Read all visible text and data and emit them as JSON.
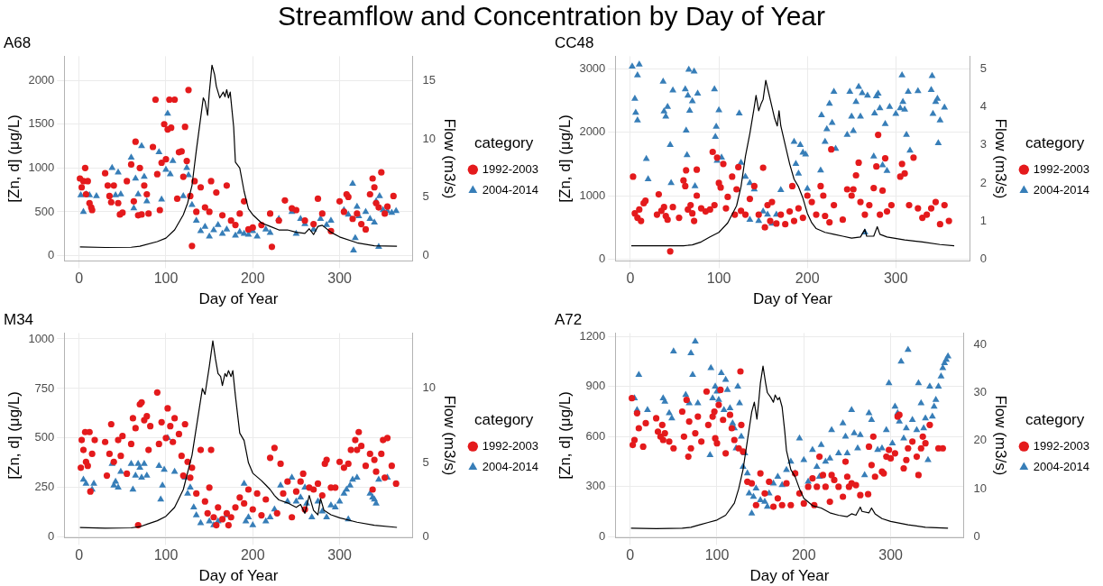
{
  "chart_data": [
    {
      "type": "scatter",
      "title": "Streamflow and Concentration by Day of Year",
      "subtitle": "A68",
      "xlabel": "Day of Year",
      "ylabel": "[Zn, d] (μg/L)",
      "y2label": "Flow (m3/s)",
      "legend_title": "category",
      "legend": "right",
      "grid": true,
      "xlim": [
        -17,
        384
      ],
      "xticks": [
        0,
        100,
        200,
        300
      ],
      "ylim": [
        -60,
        2275
      ],
      "yticks": [
        0,
        500,
        1000,
        1500,
        2000
      ],
      "y2lim": [
        -0.45,
        17.06
      ],
      "y2ticks": [
        0,
        5,
        10,
        15
      ],
      "series": [
        {
          "name": "1992-2003",
          "type": "scatter",
          "marker": "circle",
          "color": "#e41a1c",
          "x": [
            1,
            3,
            5,
            7,
            8,
            10,
            12,
            14,
            15,
            30,
            33,
            35,
            37,
            40,
            45,
            47,
            50,
            55,
            60,
            63,
            65,
            68,
            70,
            72,
            75,
            78,
            80,
            85,
            88,
            90,
            93,
            95,
            98,
            100,
            102,
            104,
            106,
            110,
            113,
            115,
            118,
            120,
            122,
            124,
            126,
            128,
            130,
            133,
            135,
            140,
            145,
            150,
            152,
            158,
            165,
            170,
            175,
            180,
            185,
            190,
            195,
            200,
            210,
            220,
            222,
            230,
            237,
            245,
            250,
            260,
            270,
            275,
            280,
            290,
            300,
            305,
            308,
            310,
            315,
            320,
            325,
            330,
            335,
            338,
            340,
            342,
            345,
            348,
            352,
            355,
            362
          ],
          "values": [
            880,
            780,
            850,
            1000,
            700,
            850,
            600,
            550,
            520,
            940,
            800,
            680,
            610,
            800,
            600,
            470,
            490,
            850,
            1040,
            620,
            1300,
            460,
            1000,
            470,
            800,
            700,
            480,
            1240,
            1780,
            930,
            520,
            1060,
            1500,
            1100,
            1440,
            1780,
            1460,
            1780,
            650,
            1180,
            1190,
            900,
            1470,
            1080,
            1890,
            680,
            110,
            850,
            500,
            780,
            550,
            500,
            850,
            720,
            460,
            800,
            400,
            350,
            480,
            620,
            300,
            320,
            350,
            480,
            100,
            400,
            630,
            540,
            520,
            400,
            360,
            650,
            480,
            280,
            620,
            500,
            700,
            670,
            420,
            480,
            360,
            300,
            700,
            880,
            780,
            600,
            550,
            950,
            480,
            560,
            680
          ]
        },
        {
          "name": "2004-2014",
          "type": "scatter",
          "marker": "triangle",
          "color": "#377eb8",
          "x": [
            2,
            5,
            8,
            12,
            20,
            38,
            42,
            45,
            48,
            60,
            63,
            65,
            68,
            72,
            75,
            78,
            92,
            95,
            100,
            102,
            105,
            108,
            120,
            124,
            126,
            130,
            135,
            140,
            145,
            150,
            155,
            160,
            165,
            170,
            180,
            185,
            190,
            195,
            200,
            205,
            215,
            220,
            230,
            245,
            250,
            255,
            260,
            270,
            278,
            285,
            290,
            305,
            310,
            315,
            316,
            318,
            320,
            322,
            330,
            335,
            340,
            342,
            345,
            346,
            350,
            355,
            360,
            365
          ],
          "values": [
            690,
            500,
            700,
            690,
            680,
            1000,
            690,
            950,
            700,
            1120,
            540,
            880,
            700,
            1250,
            900,
            620,
            1180,
            640,
            980,
            1620,
            930,
            1080,
            680,
            1000,
            920,
            580,
            400,
            280,
            330,
            220,
            290,
            350,
            250,
            300,
            230,
            270,
            250,
            240,
            280,
            220,
            300,
            260,
            420,
            500,
            250,
            420,
            360,
            300,
            420,
            350,
            400,
            520,
            470,
            820,
            60,
            200,
            560,
            450,
            500,
            420,
            380,
            620,
            100,
            680,
            520,
            510,
            490,
            510
          ]
        },
        {
          "type": "line",
          "axis": "y2",
          "marker": "none",
          "line_style": "solid",
          "color": "#000000",
          "x": [
            1,
            30,
            60,
            70,
            90,
            100,
            110,
            120,
            125,
            130,
            135,
            140,
            143,
            145,
            148,
            150,
            153,
            156,
            158,
            162,
            166,
            168,
            170,
            172,
            174,
            178,
            180,
            185,
            190,
            195,
            200,
            210,
            220,
            230,
            240,
            250,
            260,
            265,
            270,
            275,
            280,
            290,
            300,
            320,
            340,
            366
          ],
          "values": [
            0.75,
            0.7,
            0.72,
            0.8,
            1.2,
            1.5,
            2.2,
            3.5,
            4.5,
            6,
            9,
            11.8,
            13.5,
            13.2,
            12,
            14,
            16.3,
            15.5,
            14.5,
            13.5,
            14,
            13.6,
            14.2,
            13.5,
            14,
            11,
            8,
            7.5,
            5.5,
            4,
            3.5,
            2.8,
            2.5,
            2.2,
            2.2,
            2,
            1.9,
            2.3,
            1.8,
            2.5,
            2.6,
            2,
            1.6,
            1.1,
            0.85,
            0.8
          ]
        }
      ]
    },
    {
      "type": "scatter",
      "subtitle": "CC48",
      "xlabel": "Day of Year",
      "ylabel": "[Zn, d] (μg/L)",
      "y2label": "Flow (m3/s)",
      "legend_title": "category",
      "legend": "right",
      "grid": true,
      "xlim": [
        -17,
        384
      ],
      "xticks": [
        0,
        100,
        200,
        300
      ],
      "ylim": [
        -30,
        3200
      ],
      "yticks": [
        0,
        1000,
        2000,
        3000
      ],
      "y2lim": [
        -0.05,
        5.333
      ],
      "y2ticks": [
        0,
        1,
        2,
        3,
        4,
        5
      ],
      "series": [
        {
          "name": "1992-2003",
          "type": "scatter",
          "marker": "circle",
          "color": "#e41a1c",
          "x": [
            3,
            5,
            8,
            10,
            12,
            15,
            17,
            30,
            32,
            35,
            38,
            40,
            42,
            45,
            48,
            55,
            60,
            62,
            63,
            65,
            68,
            70,
            72,
            75,
            75,
            80,
            85,
            90,
            93,
            95,
            98,
            100,
            102,
            105,
            108,
            110,
            115,
            118,
            120,
            122,
            125,
            130,
            135,
            140,
            145,
            150,
            152,
            155,
            158,
            160,
            165,
            170,
            175,
            180,
            183,
            185,
            190,
            195,
            200,
            205,
            210,
            215,
            218,
            220,
            225,
            227,
            230,
            240,
            245,
            250,
            252,
            255,
            258,
            260,
            265,
            270,
            275,
            278,
            280,
            282,
            285,
            288,
            290,
            295,
            305,
            307,
            310,
            315,
            320,
            325,
            330,
            335,
            340,
            345,
            350,
            355,
            360
          ],
          "values": [
            1300,
            720,
            650,
            780,
            600,
            880,
            920,
            700,
            1020,
            760,
            820,
            680,
            620,
            120,
            820,
            650,
            1240,
            1150,
            1400,
            780,
            850,
            720,
            600,
            1000,
            1410,
            800,
            750,
            780,
            1690,
            850,
            1600,
            1200,
            1130,
            1500,
            800,
            980,
            1300,
            700,
            1100,
            1450,
            760,
            700,
            950,
            1150,
            700,
            1440,
            500,
            850,
            600,
            900,
            560,
            700,
            550,
            750,
            1150,
            600,
            800,
            650,
            1000,
            900,
            700,
            1150,
            1000,
            680,
            580,
            1730,
            850,
            620,
            1100,
            1000,
            1100,
            1320,
            1520,
            900,
            700,
            850,
            1120,
            1460,
            1960,
            700,
            1080,
            1590,
            750,
            850,
            1300,
            1500,
            1350,
            850,
            1600,
            800,
            650,
            700,
            800,
            900,
            550,
            850,
            600
          ]
        },
        {
          "name": "2004-2014",
          "type": "scatter",
          "marker": "triangle",
          "color": "#377eb8",
          "x": [
            2,
            5,
            6,
            8,
            8,
            10,
            18,
            20,
            37,
            38,
            40,
            42,
            45,
            46,
            48,
            62,
            63,
            64,
            65,
            66,
            67,
            70,
            72,
            73,
            76,
            95,
            96,
            97,
            98,
            100,
            103,
            123,
            125,
            130,
            135,
            135,
            140,
            145,
            150,
            155,
            160,
            165,
            170,
            185,
            187,
            190,
            192,
            195,
            198,
            200,
            215,
            216,
            220,
            222,
            225,
            228,
            230,
            232,
            245,
            248,
            250,
            252,
            255,
            258,
            260,
            262,
            265,
            268,
            275,
            276,
            278,
            280,
            282,
            285,
            288,
            290,
            293,
            300,
            305,
            307,
            308,
            310,
            312,
            314,
            316,
            325,
            340,
            341,
            342,
            345,
            347,
            348,
            350,
            355
          ],
          "values": [
            3040,
            2530,
            2310,
            2190,
            2900,
            3070,
            1580,
            1260,
            2800,
            2330,
            2250,
            2400,
            1800,
            1200,
            2660,
            2680,
            2030,
            1640,
            2580,
            2990,
            2340,
            2490,
            2960,
            1150,
            2610,
            2680,
            1930,
            2090,
            1550,
            2350,
            1600,
            2300,
            1520,
            1300,
            1200,
            620,
            1100,
            600,
            750,
            700,
            560,
            700,
            1090,
            1850,
            1500,
            1350,
            1800,
            1680,
            1650,
            1110,
            1400,
            2270,
            1850,
            2050,
            2450,
            2150,
            2640,
            1740,
            1960,
            2640,
            2250,
            2020,
            2480,
            2720,
            2250,
            2620,
            420,
            2580,
            1620,
            2300,
            2570,
            2610,
            2380,
            1480,
            2130,
            1390,
            2400,
            2290,
            2380,
            2900,
            2480,
            2360,
            1960,
            2640,
            1710,
            2650,
            2670,
            2890,
            2290,
            2480,
            2530,
            1830,
            2190,
            2390
          ]
        },
        {
          "type": "line",
          "axis": "y2",
          "marker": "none",
          "line_style": "solid",
          "color": "#000000",
          "x": [
            1,
            30,
            60,
            70,
            80,
            90,
            100,
            110,
            120,
            125,
            130,
            135,
            140,
            142,
            145,
            148,
            150,
            153,
            156,
            160,
            163,
            166,
            168,
            170,
            175,
            180,
            185,
            190,
            195,
            200,
            205,
            210,
            220,
            230,
            240,
            250,
            260,
            265,
            267,
            275,
            279,
            282,
            290,
            310,
            330,
            350,
            366
          ],
          "values": [
            0.35,
            0.35,
            0.35,
            0.37,
            0.45,
            0.58,
            0.7,
            0.95,
            1.4,
            1.9,
            2.7,
            3.3,
            4,
            4.3,
            3.9,
            4.1,
            4.2,
            4.7,
            4.4,
            4,
            3.7,
            3.5,
            3.9,
            3.5,
            3,
            2.5,
            2.1,
            1.9,
            1.6,
            1.2,
            0.95,
            0.8,
            0.7,
            0.65,
            0.6,
            0.55,
            0.58,
            0.78,
            0.6,
            0.6,
            0.85,
            0.65,
            0.58,
            0.5,
            0.45,
            0.38,
            0.35
          ]
        }
      ]
    },
    {
      "type": "scatter",
      "subtitle": "M34",
      "xlabel": "Day of Year",
      "ylabel": "[Zn, d] (μg/L)",
      "y2label": "Flow (m3/s)",
      "legend_title": "category",
      "legend": "right",
      "grid": true,
      "xlim": [
        -17,
        384
      ],
      "xticks": [
        0,
        100,
        200,
        300
      ],
      "ylim": [
        -3,
        1030
      ],
      "yticks": [
        0,
        250,
        500,
        750,
        1000
      ],
      "y2lim": [
        -0.04,
        13.73
      ],
      "y2ticks": [
        0,
        5,
        10
      ],
      "series": [
        {
          "name": "1992-2003",
          "type": "scatter",
          "marker": "circle",
          "color": "#e41a1c",
          "x": [
            2,
            3,
            5,
            7,
            8,
            10,
            12,
            13,
            15,
            18,
            30,
            32,
            35,
            37,
            40,
            45,
            48,
            50,
            55,
            60,
            62,
            65,
            68,
            70,
            72,
            75,
            78,
            80,
            82,
            90,
            92,
            95,
            100,
            102,
            105,
            108,
            110,
            115,
            118,
            120,
            122,
            125,
            128,
            130,
            135,
            140,
            145,
            148,
            150,
            152,
            155,
            158,
            160,
            165,
            170,
            172,
            175,
            180,
            185,
            190,
            195,
            200,
            205,
            210,
            215,
            220,
            225,
            228,
            232,
            235,
            240,
            245,
            250,
            255,
            258,
            260,
            265,
            270,
            275,
            280,
            283,
            285,
            290,
            295,
            300,
            305,
            310,
            313,
            318,
            320,
            322,
            325,
            330,
            335,
            338,
            340,
            342,
            348,
            350,
            352,
            355,
            360,
            365
          ],
          "values": [
            350,
            490,
            440,
            530,
            380,
            360,
            530,
            230,
            420,
            490,
            480,
            310,
            420,
            570,
            380,
            490,
            410,
            510,
            320,
            470,
            600,
            550,
            60,
            670,
            680,
            590,
            610,
            440,
            560,
            730,
            470,
            580,
            500,
            650,
            560,
            480,
            600,
            520,
            410,
            310,
            570,
            380,
            300,
            350,
            220,
            440,
            180,
            120,
            250,
            440,
            100,
            60,
            150,
            90,
            120,
            60,
            100,
            150,
            200,
            170,
            240,
            140,
            220,
            110,
            190,
            400,
            450,
            120,
            370,
            220,
            280,
            100,
            230,
            280,
            320,
            140,
            250,
            240,
            270,
            210,
            370,
            390,
            250,
            250,
            380,
            350,
            370,
            440,
            490,
            440,
            530,
            460,
            360,
            420,
            240,
            390,
            330,
            420,
            490,
            300,
            500,
            360,
            270
          ]
        },
        {
          "name": "2004-2014",
          "type": "scatter",
          "marker": "triangle",
          "color": "#377eb8",
          "x": [
            5,
            8,
            15,
            17,
            38,
            40,
            42,
            45,
            48,
            60,
            62,
            65,
            68,
            70,
            72,
            75,
            78,
            92,
            94,
            96,
            98,
            102,
            110,
            122,
            125,
            128,
            132,
            135,
            140,
            150,
            155,
            160,
            170,
            190,
            192,
            195,
            200,
            215,
            220,
            225,
            232,
            240,
            245,
            250,
            255,
            260,
            262,
            268,
            275,
            280,
            285,
            290,
            295,
            300,
            305,
            308,
            310,
            312,
            315,
            320,
            335,
            338,
            340,
            342,
            345,
            355
          ],
          "values": [
            290,
            270,
            240,
            270,
            370,
            260,
            280,
            250,
            330,
            370,
            240,
            310,
            370,
            350,
            300,
            370,
            310,
            360,
            190,
            260,
            340,
            500,
            330,
            300,
            220,
            250,
            150,
            110,
            70,
            80,
            60,
            80,
            110,
            270,
            80,
            100,
            60,
            80,
            100,
            140,
            260,
            180,
            300,
            180,
            200,
            250,
            170,
            100,
            180,
            130,
            100,
            160,
            150,
            180,
            220,
            240,
            90,
            260,
            290,
            300,
            220,
            200,
            190,
            170,
            290,
            300
          ]
        },
        {
          "type": "line",
          "axis": "y2",
          "marker": "none",
          "line_style": "solid",
          "color": "#000000",
          "x": [
            1,
            30,
            60,
            70,
            80,
            90,
            100,
            110,
            120,
            130,
            138,
            142,
            145,
            150,
            154,
            157,
            160,
            163,
            165,
            168,
            170,
            172,
            175,
            177,
            180,
            185,
            190,
            195,
            200,
            210,
            215,
            220,
            225,
            230,
            240,
            250,
            255,
            260,
            265,
            270,
            275,
            278,
            282,
            290,
            300,
            320,
            340,
            366
          ],
          "values": [
            0.64,
            0.6,
            0.62,
            0.7,
            0.9,
            1.1,
            1.4,
            2,
            3.2,
            5.5,
            8.5,
            10,
            9.6,
            11.5,
            13.2,
            12,
            11,
            10.8,
            10.2,
            11,
            10.8,
            11.2,
            10.8,
            11.2,
            9.5,
            7,
            6.5,
            5,
            4.3,
            3.8,
            3.5,
            3.2,
            2.8,
            2.5,
            2.3,
            2,
            2.2,
            1.6,
            2.8,
            1.8,
            1.5,
            2.6,
            1.8,
            1.5,
            1.3,
            1,
            0.8,
            0.65
          ]
        }
      ]
    },
    {
      "type": "scatter",
      "subtitle": "A72",
      "xlabel": "Day of Year",
      "ylabel": "[Zn, d] (μg/L)",
      "y2label": "Flow (m3/s)",
      "legend_title": "category",
      "legend": "right",
      "grid": true,
      "xlim": [
        -17,
        384
      ],
      "xticks": [
        0,
        100,
        200,
        300
      ],
      "ylim": [
        -5,
        1220
      ],
      "yticks": [
        0,
        300,
        600,
        900,
        1200
      ],
      "y2lim": [
        -0.17,
        42.4
      ],
      "y2ticks": [
        0,
        10,
        20,
        30,
        40
      ],
      "series": [
        {
          "name": "1992-2003",
          "type": "scatter",
          "marker": "circle",
          "color": "#e41a1c",
          "x": [
            2,
            3,
            5,
            8,
            10,
            15,
            18,
            30,
            32,
            35,
            37,
            38,
            40,
            45,
            50,
            60,
            62,
            65,
            67,
            68,
            70,
            75,
            78,
            82,
            88,
            90,
            95,
            97,
            98,
            100,
            102,
            104,
            107,
            110,
            115,
            117,
            120,
            125,
            127,
            128,
            130,
            135,
            140,
            145,
            150,
            155,
            160,
            165,
            170,
            175,
            180,
            185,
            190,
            195,
            200,
            205,
            210,
            212,
            215,
            218,
            222,
            225,
            230,
            232,
            235,
            240,
            245,
            248,
            250,
            252,
            255,
            260,
            265,
            274,
            275,
            278,
            280,
            282,
            290,
            292,
            295,
            298,
            300,
            305,
            308,
            310,
            315,
            318,
            320,
            325,
            330,
            332,
            335,
            337,
            340,
            345,
            355,
            360
          ],
          "values": [
            830,
            550,
            580,
            740,
            650,
            540,
            680,
            710,
            630,
            600,
            670,
            580,
            620,
            570,
            530,
            750,
            600,
            820,
            480,
            690,
            530,
            620,
            720,
            570,
            870,
            670,
            720,
            750,
            590,
            560,
            790,
            880,
            700,
            500,
            730,
            650,
            580,
            530,
            990,
            670,
            510,
            330,
            320,
            190,
            380,
            260,
            330,
            180,
            230,
            190,
            320,
            190,
            380,
            260,
            200,
            300,
            350,
            190,
            300,
            480,
            370,
            300,
            210,
            370,
            340,
            300,
            240,
            450,
            360,
            300,
            320,
            310,
            250,
            255,
            540,
            430,
            600,
            360,
            390,
            380,
            480,
            520,
            470,
            500,
            720,
            730,
            410,
            460,
            530,
            570,
            480,
            370,
            530,
            600,
            560,
            670,
            530,
            530
          ]
        },
        {
          "name": "2004-2014",
          "type": "scatter",
          "marker": "triangle",
          "color": "#377eb8",
          "x": [
            5,
            8,
            10,
            20,
            38,
            40,
            45,
            48,
            50,
            64,
            68,
            70,
            72,
            75,
            78,
            92,
            93,
            95,
            98,
            100,
            102,
            105,
            108,
            110,
            112,
            115,
            118,
            120,
            122,
            124,
            126,
            128,
            130,
            132,
            135,
            137,
            140,
            142,
            145,
            150,
            155,
            158,
            160,
            165,
            170,
            175,
            180,
            185,
            190,
            195,
            200,
            205,
            210,
            215,
            218,
            220,
            225,
            230,
            232,
            240,
            245,
            248,
            250,
            255,
            258,
            262,
            265,
            270,
            275,
            278,
            285,
            290,
            295,
            298,
            302,
            305,
            308,
            310,
            312,
            315,
            318,
            320,
            325,
            330,
            332,
            335,
            338,
            340,
            343,
            345,
            348,
            350,
            352,
            355,
            358,
            360,
            362,
            364,
            366
          ],
          "values": [
            830,
            760,
            970,
            760,
            830,
            810,
            740,
            710,
            1110,
            850,
            800,
            1100,
            970,
            1170,
            800,
            490,
            1010,
            830,
            900,
            870,
            820,
            980,
            760,
            940,
            880,
            770,
            680,
            650,
            530,
            900,
            800,
            600,
            420,
            500,
            380,
            260,
            140,
            240,
            290,
            220,
            210,
            180,
            260,
            320,
            360,
            310,
            400,
            450,
            380,
            590,
            460,
            330,
            520,
            420,
            360,
            550,
            450,
            470,
            640,
            500,
            680,
            600,
            500,
            760,
            620,
            530,
            610,
            370,
            740,
            700,
            520,
            530,
            640,
            920,
            560,
            780,
            740,
            690,
            1050,
            590,
            650,
            1120,
            700,
            640,
            920,
            800,
            650,
            710,
            460,
            900,
            720,
            780,
            820,
            900,
            960,
            1010,
            1040,
            1060,
            1080
          ]
        },
        {
          "type": "line",
          "axis": "y2",
          "marker": "none",
          "line_style": "solid",
          "color": "#000000",
          "x": [
            1,
            30,
            60,
            70,
            80,
            90,
            100,
            110,
            120,
            125,
            130,
            135,
            140,
            143,
            146,
            148,
            150,
            153,
            156,
            158,
            162,
            165,
            167,
            170,
            172,
            175,
            178,
            180,
            185,
            190,
            195,
            200,
            210,
            220,
            230,
            240,
            250,
            255,
            260,
            265,
            267,
            275,
            278,
            282,
            290,
            300,
            320,
            340,
            366
          ],
          "values": [
            1.8,
            1.7,
            1.8,
            2,
            2.5,
            3,
            3.5,
            4.5,
            7,
            10,
            14,
            20,
            26,
            28,
            24.5,
            28,
            32,
            35.5,
            32,
            30,
            29,
            28,
            29.5,
            28.5,
            29,
            27,
            22,
            18,
            14,
            12.5,
            10,
            8,
            6.5,
            6,
            5,
            4.5,
            4.2,
            4.8,
            4.5,
            6.2,
            5.3,
            5,
            6,
            4.8,
            3.8,
            3.2,
            2.5,
            2,
            1.8
          ]
        }
      ]
    }
  ]
}
